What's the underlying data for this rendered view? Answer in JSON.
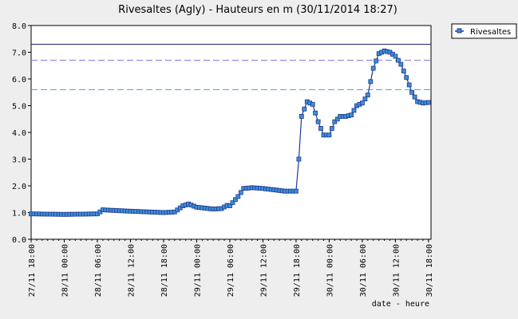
{
  "chart_data": {
    "type": "line",
    "title": "Rivesaltes (Agly) - Hauteurs en m (30/11/2014 18:27)",
    "xlabel": "date - heure",
    "ylabel": "",
    "ylim": [
      0,
      8
    ],
    "yticks": [
      "0.0",
      "1.0",
      "2.0",
      "3.0",
      "4.0",
      "5.0",
      "6.0",
      "7.0",
      "8.0"
    ],
    "xlim": [
      "27/11 18:00",
      "30/11 18:27"
    ],
    "xticks": [
      "27/11 18:00",
      "28/11 00:00",
      "28/11 06:00",
      "28/11 12:00",
      "28/11 18:00",
      "29/11 00:00",
      "29/11 06:00",
      "29/11 12:00",
      "29/11 18:00",
      "30/11 00:00",
      "30/11 06:00",
      "30/11 12:00",
      "30/11 18:00"
    ],
    "grid": false,
    "legend": "top-right",
    "threshold_lines": [
      {
        "value": 7.3,
        "color": "#1a2a6c",
        "style": "solid"
      },
      {
        "value": 6.7,
        "color": "#8877dd",
        "style": "dashed"
      },
      {
        "value": 5.6,
        "color": "#33aacc",
        "style": "dashed"
      }
    ],
    "series": [
      {
        "name": "Rivesaltes",
        "color": "#1f3a93",
        "marker_fill": "#3d8fd6",
        "x": [
          "27/11 18:00",
          "28/11 00:00",
          "28/11 06:00",
          "28/11 07:00",
          "28/11 12:00",
          "28/11 18:00",
          "28/11 20:00",
          "28/11 21:30",
          "28/11 22:30",
          "29/11 00:00",
          "29/11 03:00",
          "29/11 04:30",
          "29/11 05:30",
          "29/11 06:00",
          "29/11 07:30",
          "29/11 08:30",
          "29/11 10:00",
          "29/11 12:00",
          "29/11 16:00",
          "29/11 18:00",
          "29/11 18:30",
          "29/11 19:00",
          "29/11 20:00",
          "29/11 21:00",
          "29/11 22:00",
          "29/11 23:00",
          "30/11 00:00",
          "30/11 01:00",
          "30/11 02:00",
          "30/11 03:00",
          "30/11 04:00",
          "30/11 05:00",
          "30/11 06:00",
          "30/11 07:00",
          "30/11 08:00",
          "30/11 09:00",
          "30/11 10:00",
          "30/11 11:00",
          "30/11 12:00",
          "30/11 13:00",
          "30/11 14:00",
          "30/11 15:00",
          "30/11 16:00",
          "30/11 17:00",
          "30/11 18:00",
          "30/11 18:27"
        ],
        "y": [
          0.95,
          0.93,
          0.95,
          1.1,
          1.05,
          1.0,
          1.02,
          1.25,
          1.32,
          1.2,
          1.13,
          1.15,
          1.27,
          1.25,
          1.6,
          1.9,
          1.93,
          1.9,
          1.8,
          1.8,
          3.0,
          4.6,
          5.15,
          5.05,
          4.4,
          3.9,
          3.9,
          4.4,
          4.6,
          4.6,
          4.65,
          5.0,
          5.1,
          5.4,
          6.4,
          6.95,
          7.05,
          7.0,
          6.85,
          6.55,
          6.05,
          5.5,
          5.15,
          5.1,
          5.12,
          5.1
        ]
      }
    ]
  }
}
